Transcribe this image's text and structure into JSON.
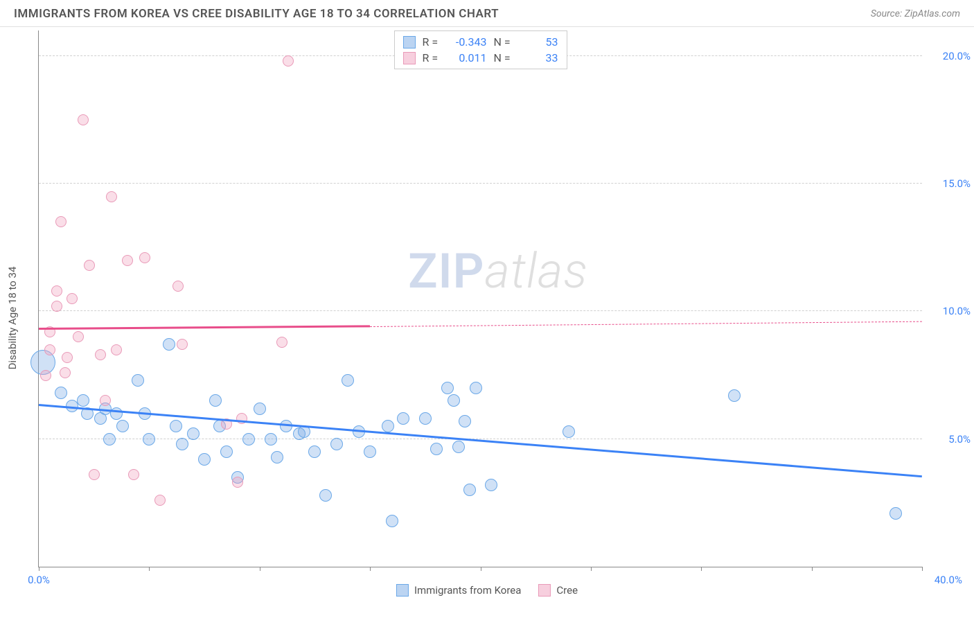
{
  "header": {
    "title": "IMMIGRANTS FROM KOREA VS CREE DISABILITY AGE 18 TO 34 CORRELATION CHART",
    "source": "Source: ZipAtlas.com"
  },
  "chart": {
    "type": "scatter",
    "ylabel": "Disability Age 18 to 34",
    "xlim": [
      0,
      40
    ],
    "ylim": [
      0,
      21
    ],
    "ytick_values": [
      5,
      10,
      15,
      20
    ],
    "ytick_labels": [
      "5.0%",
      "10.0%",
      "15.0%",
      "20.0%"
    ],
    "xtick_values": [
      0,
      5,
      10,
      15,
      20,
      25,
      30,
      35,
      40
    ],
    "xtick_label_left": "0.0%",
    "xtick_label_right": "40.0%",
    "grid_color": "#d0d0d0",
    "background_color": "#ffffff",
    "watermark": "ZIPatlas",
    "series": [
      {
        "name": "Immigrants from Korea",
        "color_fill": "rgba(120,170,230,0.35)",
        "color_stroke": "#6aa8e8",
        "trend_color": "#3b82f6",
        "trend": {
          "x1": 0,
          "y1": 6.3,
          "x2": 40,
          "y2": 3.5
        },
        "legend_r": "-0.343",
        "legend_n": "53",
        "points": [
          {
            "x": 0.2,
            "y": 8.0,
            "r": 18
          },
          {
            "x": 1.0,
            "y": 6.8,
            "r": 9
          },
          {
            "x": 1.5,
            "y": 6.3,
            "r": 9
          },
          {
            "x": 2.0,
            "y": 6.5,
            "r": 9
          },
          {
            "x": 2.2,
            "y": 6.0,
            "r": 9
          },
          {
            "x": 2.8,
            "y": 5.8,
            "r": 9
          },
          {
            "x": 3.0,
            "y": 6.2,
            "r": 9
          },
          {
            "x": 3.2,
            "y": 5.0,
            "r": 9
          },
          {
            "x": 3.5,
            "y": 6.0,
            "r": 9
          },
          {
            "x": 3.8,
            "y": 5.5,
            "r": 9
          },
          {
            "x": 4.5,
            "y": 7.3,
            "r": 9
          },
          {
            "x": 4.8,
            "y": 6.0,
            "r": 9
          },
          {
            "x": 5.0,
            "y": 5.0,
            "r": 9
          },
          {
            "x": 5.9,
            "y": 8.7,
            "r": 9
          },
          {
            "x": 6.2,
            "y": 5.5,
            "r": 9
          },
          {
            "x": 6.5,
            "y": 4.8,
            "r": 9
          },
          {
            "x": 7.0,
            "y": 5.2,
            "r": 9
          },
          {
            "x": 7.5,
            "y": 4.2,
            "r": 9
          },
          {
            "x": 8.0,
            "y": 6.5,
            "r": 9
          },
          {
            "x": 8.2,
            "y": 5.5,
            "r": 9
          },
          {
            "x": 8.5,
            "y": 4.5,
            "r": 9
          },
          {
            "x": 9.0,
            "y": 3.5,
            "r": 9
          },
          {
            "x": 9.5,
            "y": 5.0,
            "r": 9
          },
          {
            "x": 10.0,
            "y": 6.2,
            "r": 9
          },
          {
            "x": 10.5,
            "y": 5.0,
            "r": 9
          },
          {
            "x": 10.8,
            "y": 4.3,
            "r": 9
          },
          {
            "x": 11.2,
            "y": 5.5,
            "r": 9
          },
          {
            "x": 11.8,
            "y": 5.2,
            "r": 9
          },
          {
            "x": 12.0,
            "y": 5.3,
            "r": 9
          },
          {
            "x": 12.5,
            "y": 4.5,
            "r": 9
          },
          {
            "x": 13.0,
            "y": 2.8,
            "r": 9
          },
          {
            "x": 13.5,
            "y": 4.8,
            "r": 9
          },
          {
            "x": 14.0,
            "y": 7.3,
            "r": 9
          },
          {
            "x": 14.5,
            "y": 5.3,
            "r": 9
          },
          {
            "x": 15.0,
            "y": 4.5,
            "r": 9
          },
          {
            "x": 15.8,
            "y": 5.5,
            "r": 9
          },
          {
            "x": 16.0,
            "y": 1.8,
            "r": 9
          },
          {
            "x": 16.5,
            "y": 5.8,
            "r": 9
          },
          {
            "x": 17.5,
            "y": 5.8,
            "r": 9
          },
          {
            "x": 18.0,
            "y": 4.6,
            "r": 9
          },
          {
            "x": 18.5,
            "y": 7.0,
            "r": 9
          },
          {
            "x": 18.8,
            "y": 6.5,
            "r": 9
          },
          {
            "x": 19.0,
            "y": 4.7,
            "r": 9
          },
          {
            "x": 19.3,
            "y": 5.7,
            "r": 9
          },
          {
            "x": 19.5,
            "y": 3.0,
            "r": 9
          },
          {
            "x": 19.8,
            "y": 7.0,
            "r": 9
          },
          {
            "x": 20.5,
            "y": 3.2,
            "r": 9
          },
          {
            "x": 24.0,
            "y": 5.3,
            "r": 9
          },
          {
            "x": 31.5,
            "y": 6.7,
            "r": 9
          },
          {
            "x": 38.8,
            "y": 2.1,
            "r": 9
          }
        ]
      },
      {
        "name": "Cree",
        "color_fill": "rgba(240,160,190,0.35)",
        "color_stroke": "#e99ab8",
        "trend_color": "#e84d8a",
        "trend": {
          "x1": 0,
          "y1": 9.3,
          "x2": 15,
          "y2": 9.4
        },
        "trend_dash": {
          "x1": 15,
          "y1": 9.4,
          "x2": 40,
          "y2": 9.6
        },
        "legend_r": "0.011",
        "legend_n": "33",
        "points": [
          {
            "x": 0.3,
            "y": 7.5,
            "r": 8
          },
          {
            "x": 0.5,
            "y": 8.5,
            "r": 8
          },
          {
            "x": 0.5,
            "y": 9.2,
            "r": 8
          },
          {
            "x": 0.8,
            "y": 10.2,
            "r": 8
          },
          {
            "x": 0.8,
            "y": 10.8,
            "r": 8
          },
          {
            "x": 1.0,
            "y": 13.5,
            "r": 8
          },
          {
            "x": 1.2,
            "y": 7.6,
            "r": 8
          },
          {
            "x": 1.3,
            "y": 8.2,
            "r": 8
          },
          {
            "x": 1.5,
            "y": 10.5,
            "r": 8
          },
          {
            "x": 1.8,
            "y": 9.0,
            "r": 8
          },
          {
            "x": 2.0,
            "y": 17.5,
            "r": 8
          },
          {
            "x": 2.3,
            "y": 11.8,
            "r": 8
          },
          {
            "x": 2.5,
            "y": 3.6,
            "r": 8
          },
          {
            "x": 2.8,
            "y": 8.3,
            "r": 8
          },
          {
            "x": 3.0,
            "y": 6.5,
            "r": 8
          },
          {
            "x": 3.3,
            "y": 14.5,
            "r": 8
          },
          {
            "x": 3.5,
            "y": 8.5,
            "r": 8
          },
          {
            "x": 4.0,
            "y": 12.0,
            "r": 8
          },
          {
            "x": 4.3,
            "y": 3.6,
            "r": 8
          },
          {
            "x": 4.8,
            "y": 12.1,
            "r": 8
          },
          {
            "x": 5.5,
            "y": 2.6,
            "r": 8
          },
          {
            "x": 6.3,
            "y": 11.0,
            "r": 8
          },
          {
            "x": 6.5,
            "y": 8.7,
            "r": 8
          },
          {
            "x": 8.5,
            "y": 5.6,
            "r": 8
          },
          {
            "x": 9.0,
            "y": 3.3,
            "r": 8
          },
          {
            "x": 9.2,
            "y": 5.8,
            "r": 8
          },
          {
            "x": 11.0,
            "y": 8.8,
            "r": 8
          },
          {
            "x": 11.3,
            "y": 19.8,
            "r": 8
          }
        ]
      }
    ],
    "legend_bottom": [
      {
        "label": "Immigrants from Korea",
        "fill": "rgba(120,170,230,0.5)",
        "stroke": "#6aa8e8"
      },
      {
        "label": "Cree",
        "fill": "rgba(240,160,190,0.5)",
        "stroke": "#e99ab8"
      }
    ]
  }
}
